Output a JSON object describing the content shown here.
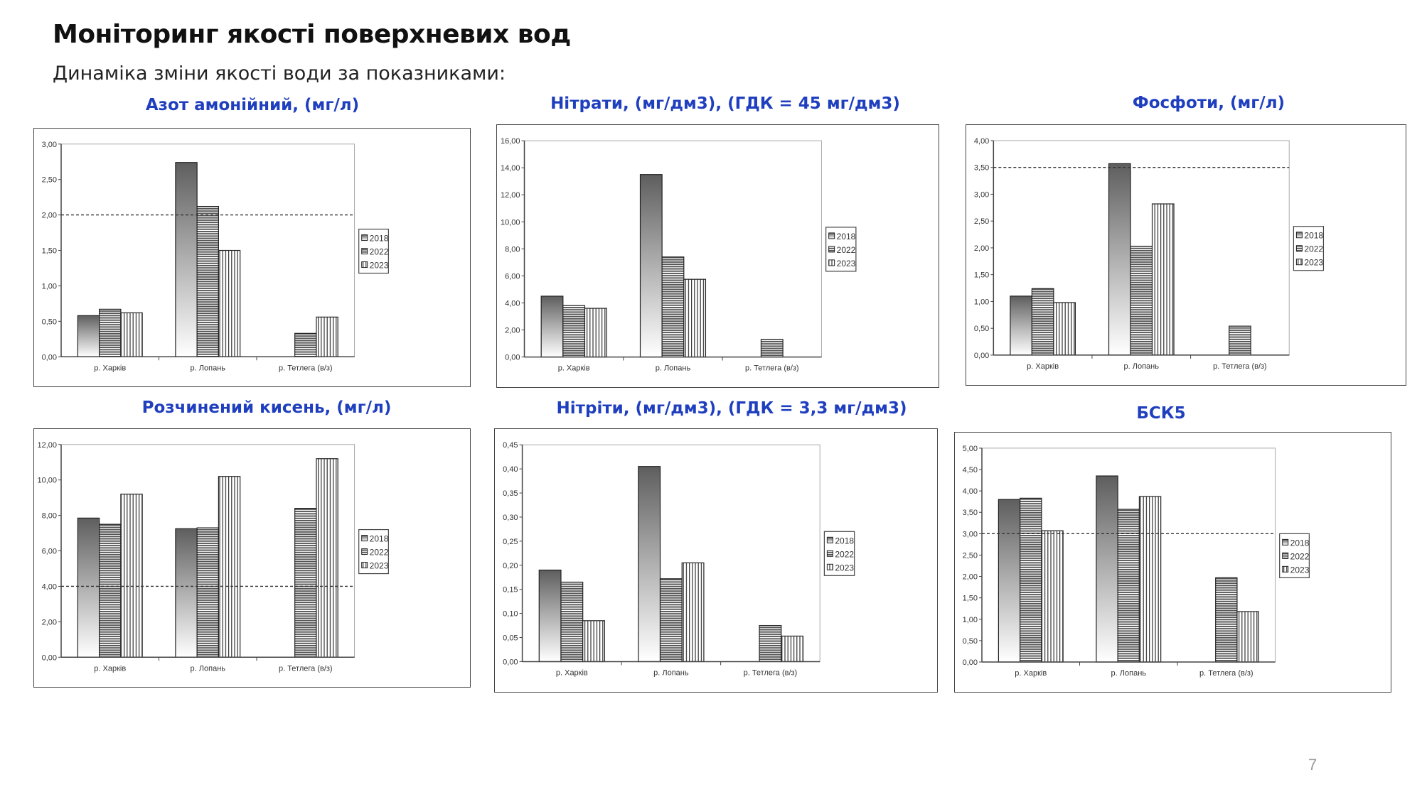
{
  "header": {
    "title": "Моніторинг якості поверхневих вод",
    "subtitle": "Динаміка зміни якості води за показниками:"
  },
  "page_number": "7",
  "colors": {
    "title_blue": "#1f3fbf",
    "bar_dark": "#666666",
    "axis": "#444444"
  },
  "chart_data": [
    {
      "type": "bar",
      "title": "Азот амонійний, (мг/л)",
      "categories": [
        "р. Харків",
        "р. Лопань",
        "р. Тетлега (в/з)"
      ],
      "series": [
        {
          "name": "2018",
          "values": [
            0.58,
            2.74,
            null
          ]
        },
        {
          "name": "2022",
          "values": [
            0.67,
            2.12,
            0.33
          ]
        },
        {
          "name": "2023",
          "values": [
            0.62,
            1.5,
            0.56
          ]
        }
      ],
      "ylim": [
        0,
        3
      ],
      "ystep": 0.5,
      "limit_line": 2.0,
      "legend": "right"
    },
    {
      "type": "bar",
      "title": "Нітрати, (мг/дм3), (ГДК = 45 мг/дм3)",
      "categories": [
        "р. Харків",
        "р. Лопань",
        "р. Тетлега (в/з)"
      ],
      "series": [
        {
          "name": "2018",
          "values": [
            4.5,
            13.5,
            null
          ]
        },
        {
          "name": "2022",
          "values": [
            3.8,
            7.4,
            1.3
          ]
        },
        {
          "name": "2023",
          "values": [
            3.6,
            5.75,
            null
          ]
        }
      ],
      "ylim": [
        0,
        16
      ],
      "ystep": 2,
      "limit_line": null,
      "legend": "right"
    },
    {
      "type": "bar",
      "title": "Фосфоти, (мг/л)",
      "categories": [
        "р. Харків",
        "р. Лопань",
        "р. Тетлега (в/з)"
      ],
      "series": [
        {
          "name": "2018",
          "values": [
            1.1,
            3.57,
            0
          ]
        },
        {
          "name": "2022",
          "values": [
            1.24,
            2.03,
            0.54
          ]
        },
        {
          "name": "2023",
          "values": [
            0.98,
            2.82,
            0
          ]
        }
      ],
      "ylim": [
        0,
        4
      ],
      "ystep": 0.5,
      "limit_line": 3.5,
      "legend": "right"
    },
    {
      "type": "bar",
      "title": "Розчинений кисень, (мг/л)",
      "categories": [
        "р. Харків",
        "р. Лопань",
        "р. Тетлега (в/з)"
      ],
      "series": [
        {
          "name": "2018",
          "values": [
            7.85,
            7.25,
            null
          ]
        },
        {
          "name": "2022",
          "values": [
            7.5,
            7.3,
            8.4
          ]
        },
        {
          "name": "2023",
          "values": [
            9.2,
            10.2,
            11.2
          ]
        }
      ],
      "ylim": [
        0,
        12
      ],
      "ystep": 2,
      "limit_line": 4.0,
      "legend": "right"
    },
    {
      "type": "bar",
      "title": "Нітріти, (мг/дм3), (ГДК = 3,3 мг/дм3)",
      "categories": [
        "р. Харків",
        "р. Лопань",
        "р. Тетлега (в/з)"
      ],
      "series": [
        {
          "name": "2018",
          "values": [
            0.19,
            0.405,
            null
          ]
        },
        {
          "name": "2022",
          "values": [
            0.165,
            0.172,
            0.075
          ]
        },
        {
          "name": "2023",
          "values": [
            0.085,
            0.205,
            0.053
          ]
        }
      ],
      "ylim": [
        0,
        0.45
      ],
      "ystep": 0.05,
      "limit_line": null,
      "legend": "right"
    },
    {
      "type": "bar",
      "title": "БСК5",
      "categories": [
        "р. Харків",
        "р. Лопань",
        "р. Тетлега (в/з)"
      ],
      "series": [
        {
          "name": "2018",
          "values": [
            3.8,
            4.35,
            null
          ]
        },
        {
          "name": "2022",
          "values": [
            3.83,
            3.57,
            1.97
          ]
        },
        {
          "name": "2023",
          "values": [
            3.07,
            3.87,
            1.18
          ]
        }
      ],
      "ylim": [
        0,
        5
      ],
      "ystep": 0.5,
      "limit_line": 3.0,
      "legend": "right"
    }
  ]
}
